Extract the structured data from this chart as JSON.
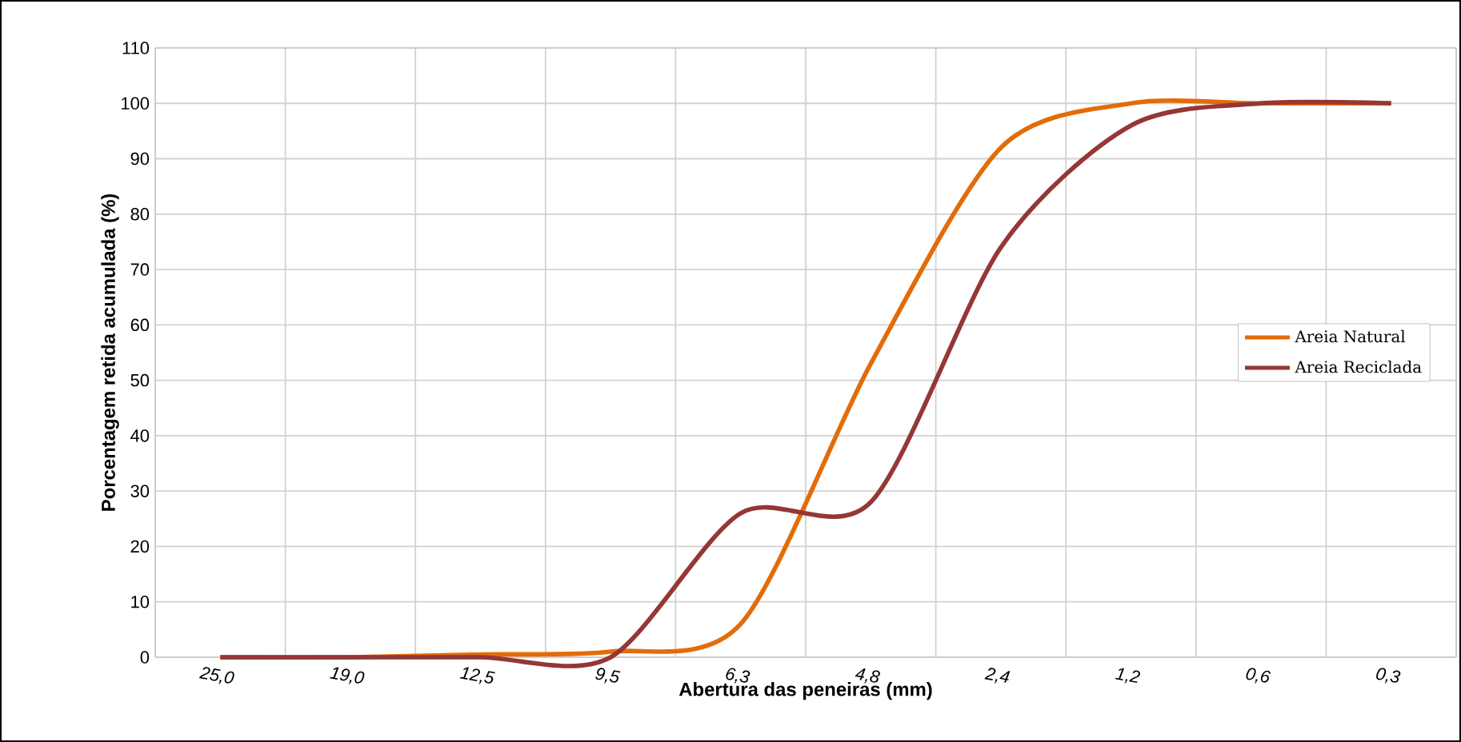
{
  "chart_data": {
    "type": "line",
    "xlabel": "Abertura das peneiras (mm)",
    "ylabel": "Porcentagem retida acumulada (%)",
    "categories": [
      "25,0",
      "19,0",
      "12,5",
      "9,5",
      "6,3",
      "4,8",
      "2,4",
      "1,2",
      "0,6",
      "0,3"
    ],
    "series": [
      {
        "name": "Areia Natural",
        "color": "#e36c09",
        "values": [
          0,
          0,
          0.5,
          1,
          6,
          53,
          92,
          100,
          100,
          100
        ]
      },
      {
        "name": "Areia Reciclada",
        "color": "#953735",
        "values": [
          0,
          0,
          0,
          0,
          26,
          28,
          74,
          96,
          100,
          100
        ]
      }
    ],
    "ylim": [
      0,
      110
    ],
    "yticks": [
      0,
      10,
      20,
      30,
      40,
      50,
      60,
      70,
      80,
      90,
      100,
      110
    ],
    "grid": true,
    "legend": "right",
    "marker": "none",
    "line_style": "solid"
  }
}
